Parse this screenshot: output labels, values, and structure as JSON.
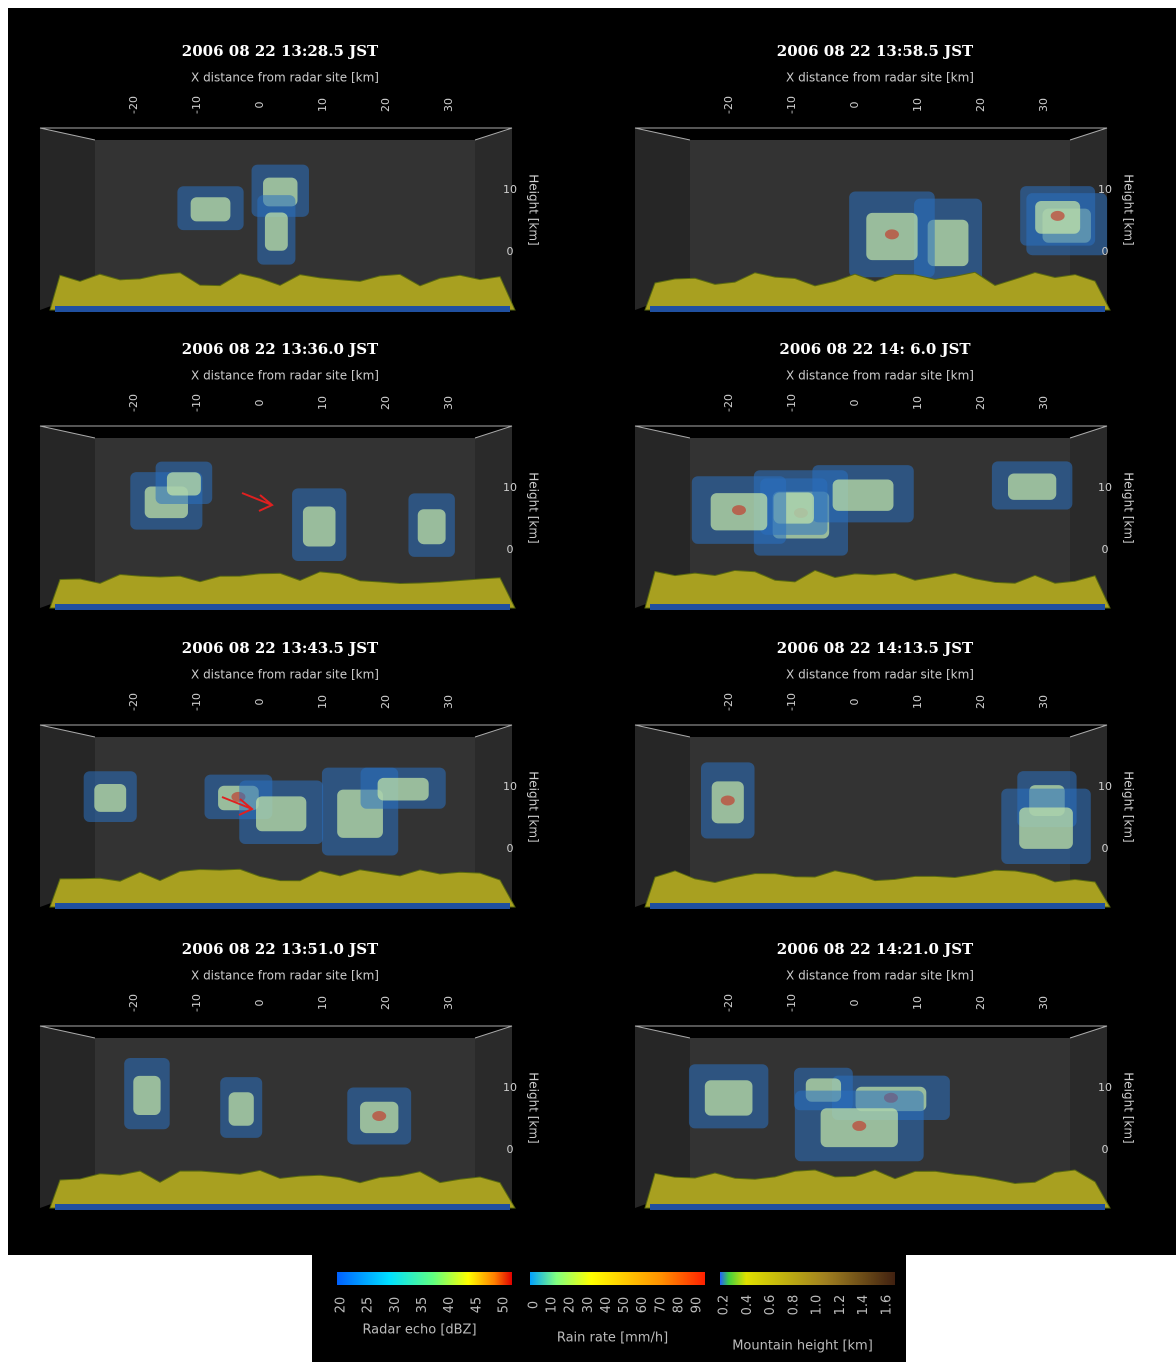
{
  "panel_axes": {
    "x_label": "X distance from radar site [km]",
    "x_ticks": [
      -20,
      -10,
      0,
      10,
      20,
      30
    ],
    "y_label": "Height [km]",
    "y_ticks": [
      10,
      0
    ]
  },
  "panels": [
    {
      "title": "2006 08 22   13:28.5 JST"
    },
    {
      "title": "2006 08 22   13:36.0 JST"
    },
    {
      "title": "2006 08 22   13:43.5 JST"
    },
    {
      "title": "2006 08 22   13:51.0 JST"
    },
    {
      "title": "2006 08 22   13:58.5 JST"
    },
    {
      "title": "2006 08 22   14: 6.0 JST"
    },
    {
      "title": "2006 08 22   14:13.5 JST"
    },
    {
      "title": "2006 08 22   14:21.0 JST"
    }
  ],
  "colorbars": [
    {
      "label": "Radar echo [dBZ]",
      "ticks": [
        20,
        25,
        30,
        35,
        40,
        45,
        50
      ]
    },
    {
      "label": "Rain rate [mm/h]",
      "ticks": [
        0,
        10,
        20,
        30,
        40,
        50,
        60,
        70,
        80,
        90
      ]
    },
    {
      "label": "Mountain height [km]",
      "ticks": [
        "0.2",
        "0.4",
        "0.6",
        "0.8",
        "1.0",
        "1.2",
        "1.4",
        "1.6"
      ]
    }
  ]
}
